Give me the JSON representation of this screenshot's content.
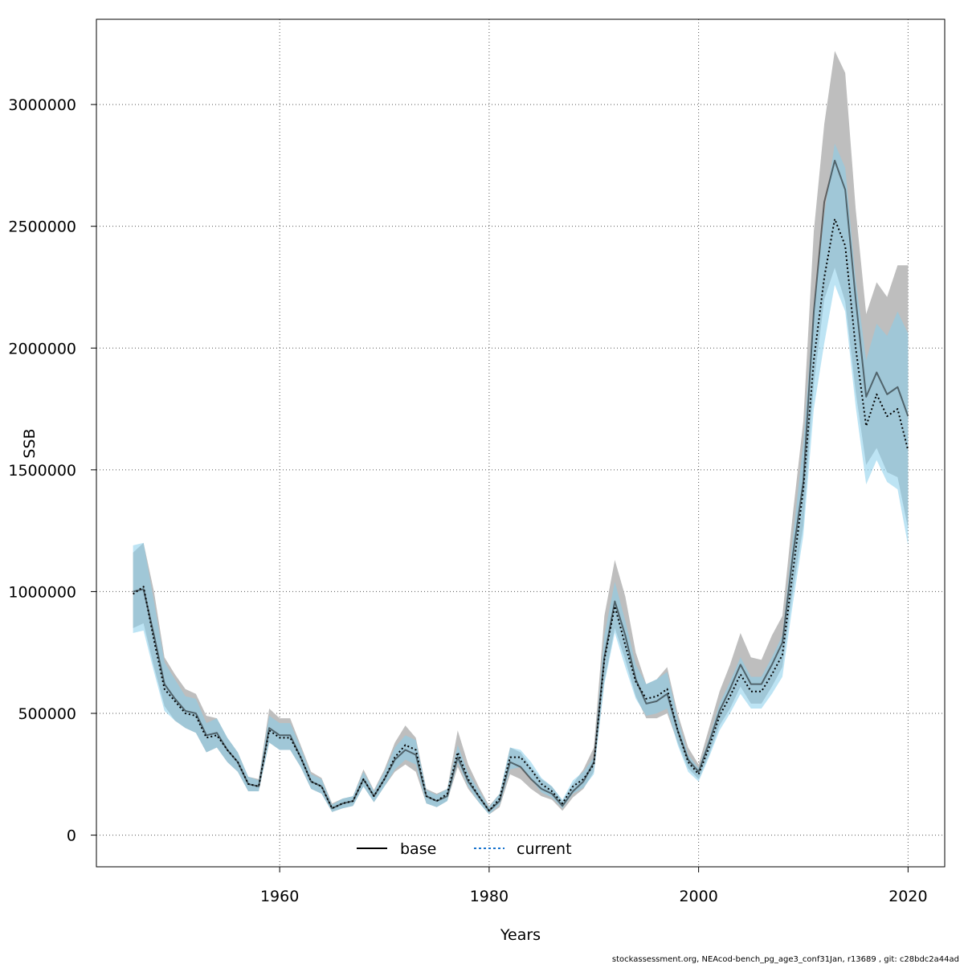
{
  "chart_data": {
    "type": "line",
    "xlabel": "Years",
    "ylabel": "SSB",
    "xlim": [
      1942.5,
      2023.5
    ],
    "ylim": [
      -130000,
      3350000
    ],
    "x_ticks": [
      1960,
      1980,
      2000,
      2020
    ],
    "y_ticks": [
      0,
      500000,
      1000000,
      1500000,
      2000000,
      2500000,
      3000000
    ],
    "x_tick_labels": [
      "1960",
      "1980",
      "2000",
      "2020"
    ],
    "y_tick_labels": [
      "0",
      "500000",
      "1000000",
      "1500000",
      "2000000",
      "2500000",
      "3000000"
    ],
    "grid": true,
    "legend_position": "bottom",
    "x": [
      1946,
      1947,
      1948,
      1949,
      1950,
      1951,
      1952,
      1953,
      1954,
      1955,
      1956,
      1957,
      1958,
      1959,
      1960,
      1961,
      1962,
      1963,
      1964,
      1965,
      1966,
      1967,
      1968,
      1969,
      1970,
      1971,
      1972,
      1973,
      1974,
      1975,
      1976,
      1977,
      1978,
      1979,
      1980,
      1981,
      1982,
      1983,
      1984,
      1985,
      1986,
      1987,
      1988,
      1989,
      1990,
      1991,
      1992,
      1993,
      1994,
      1995,
      1996,
      1997,
      1998,
      1999,
      2000,
      2001,
      2002,
      2003,
      2004,
      2005,
      2006,
      2007,
      2008,
      2009,
      2010,
      2011,
      2012,
      2013,
      2014,
      2015,
      2016,
      2017,
      2018,
      2019,
      2020
    ],
    "series": [
      {
        "name": "base",
        "color": "#000000",
        "band_color": "#bebebe",
        "values": [
          1000000,
          1010000,
          820000,
          620000,
          560000,
          510000,
          500000,
          410000,
          420000,
          350000,
          300000,
          210000,
          200000,
          440000,
          410000,
          410000,
          320000,
          220000,
          200000,
          110000,
          130000,
          140000,
          230000,
          160000,
          230000,
          310000,
          350000,
          330000,
          160000,
          140000,
          160000,
          320000,
          220000,
          160000,
          100000,
          140000,
          300000,
          280000,
          230000,
          190000,
          170000,
          120000,
          180000,
          220000,
          300000,
          730000,
          960000,
          820000,
          640000,
          540000,
          550000,
          580000,
          430000,
          310000,
          260000,
          380000,
          510000,
          600000,
          700000,
          620000,
          620000,
          700000,
          790000,
          1150000,
          1450000,
          2150000,
          2600000,
          2770000,
          2650000,
          2200000,
          1800000,
          1900000,
          1810000,
          1840000,
          1720000
        ],
        "lower": [
          850000,
          870000,
          690000,
          530000,
          470000,
          440000,
          420000,
          340000,
          360000,
          300000,
          260000,
          180000,
          180000,
          380000,
          350000,
          350000,
          280000,
          190000,
          170000,
          95000,
          110000,
          120000,
          200000,
          135000,
          200000,
          260000,
          290000,
          260000,
          130000,
          115000,
          140000,
          280000,
          190000,
          135000,
          85000,
          115000,
          250000,
          230000,
          190000,
          160000,
          145000,
          100000,
          155000,
          190000,
          260000,
          630000,
          850000,
          720000,
          570000,
          480000,
          480000,
          500000,
          380000,
          275000,
          230000,
          330000,
          450000,
          520000,
          610000,
          540000,
          540000,
          610000,
          690000,
          1000000,
          1270000,
          1850000,
          2200000,
          2330000,
          2190000,
          1820000,
          1520000,
          1590000,
          1490000,
          1470000,
          1260000
        ],
        "upper": [
          1160000,
          1200000,
          1000000,
          730000,
          660000,
          600000,
          580000,
          490000,
          480000,
          400000,
          340000,
          240000,
          230000,
          520000,
          480000,
          480000,
          370000,
          260000,
          235000,
          130000,
          150000,
          160000,
          270000,
          185000,
          270000,
          380000,
          450000,
          400000,
          190000,
          170000,
          190000,
          430000,
          290000,
          200000,
          120000,
          170000,
          360000,
          340000,
          280000,
          230000,
          200000,
          140000,
          210000,
          270000,
          360000,
          900000,
          1130000,
          980000,
          750000,
          620000,
          640000,
          690000,
          500000,
          360000,
          290000,
          440000,
          590000,
          700000,
          830000,
          730000,
          720000,
          820000,
          900000,
          1320000,
          1700000,
          2480000,
          2920000,
          3220000,
          3130000,
          2570000,
          2140000,
          2270000,
          2210000,
          2340000,
          2340000
        ]
      },
      {
        "name": "current",
        "color": "#000000",
        "band_color": "#87ceeb",
        "values": [
          990000,
          1020000,
          800000,
          600000,
          550000,
          500000,
          490000,
          400000,
          410000,
          350000,
          300000,
          210000,
          200000,
          430000,
          400000,
          400000,
          320000,
          220000,
          200000,
          110000,
          130000,
          140000,
          230000,
          160000,
          230000,
          320000,
          370000,
          350000,
          160000,
          140000,
          170000,
          340000,
          230000,
          160000,
          100000,
          150000,
          320000,
          320000,
          270000,
          210000,
          180000,
          130000,
          200000,
          230000,
          290000,
          720000,
          940000,
          780000,
          630000,
          560000,
          570000,
          600000,
          430000,
          300000,
          250000,
          360000,
          490000,
          570000,
          660000,
          590000,
          590000,
          660000,
          740000,
          1080000,
          1420000,
          1950000,
          2290000,
          2530000,
          2420000,
          2000000,
          1680000,
          1810000,
          1720000,
          1750000,
          1580000
        ],
        "lower": [
          830000,
          840000,
          670000,
          510000,
          470000,
          440000,
          420000,
          340000,
          360000,
          300000,
          260000,
          180000,
          180000,
          380000,
          350000,
          350000,
          280000,
          190000,
          170000,
          95000,
          110000,
          120000,
          200000,
          135000,
          200000,
          270000,
          310000,
          290000,
          130000,
          115000,
          140000,
          300000,
          200000,
          135000,
          85000,
          125000,
          270000,
          280000,
          230000,
          175000,
          155000,
          110000,
          170000,
          195000,
          250000,
          620000,
          830000,
          690000,
          560000,
          490000,
          500000,
          520000,
          370000,
          260000,
          220000,
          320000,
          430000,
          500000,
          580000,
          520000,
          520000,
          580000,
          650000,
          950000,
          1230000,
          1750000,
          2020000,
          2260000,
          2150000,
          1760000,
          1440000,
          1540000,
          1450000,
          1420000,
          1190000
        ],
        "upper": [
          1190000,
          1200000,
          960000,
          710000,
          640000,
          570000,
          560000,
          460000,
          480000,
          400000,
          340000,
          240000,
          225000,
          490000,
          460000,
          460000,
          360000,
          250000,
          230000,
          125000,
          150000,
          160000,
          260000,
          180000,
          260000,
          360000,
          410000,
          390000,
          185000,
          165000,
          190000,
          370000,
          255000,
          185000,
          115000,
          170000,
          360000,
          350000,
          300000,
          235000,
          200000,
          145000,
          225000,
          260000,
          320000,
          820000,
          1040000,
          880000,
          700000,
          620000,
          640000,
          670000,
          480000,
          330000,
          275000,
          400000,
          540000,
          630000,
          730000,
          650000,
          650000,
          730000,
          820000,
          1220000,
          1610000,
          2170000,
          2550000,
          2840000,
          2740000,
          2280000,
          1950000,
          2100000,
          2050000,
          2150000,
          2060000
        ]
      }
    ],
    "footer": "stockassessment.org, NEAcod-bench_pg_age3_conf31Jan, r13689 , git: c28bdc2a44ad"
  }
}
